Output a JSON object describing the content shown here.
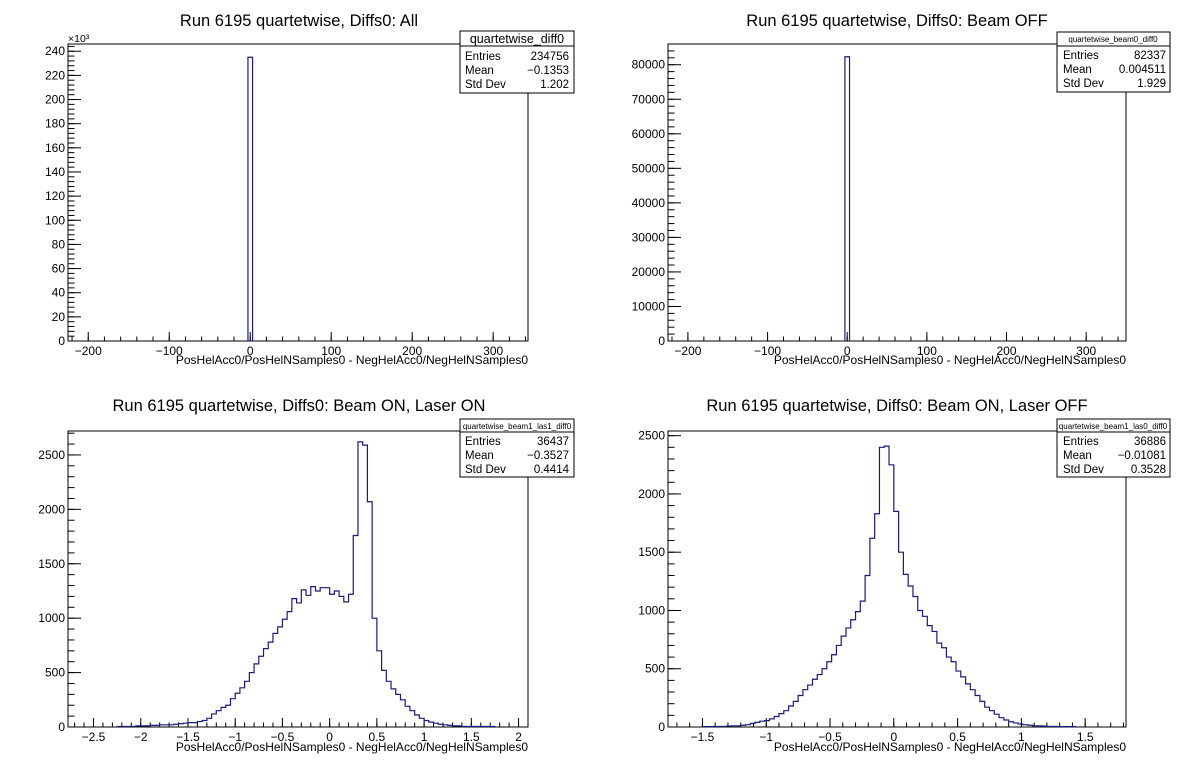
{
  "chart_data": [
    {
      "type": "bar",
      "title": "Run 6195 quartetwise, Diffs0: All",
      "xlabel": "PosHelAcc0/PosHelNSamples0 - NegHelAcc0/NegHelNSamples0",
      "ylabel": "",
      "xlim": [
        -225,
        343
      ],
      "ylim": [
        0,
        246
      ],
      "y_multiplier_label": "×10³",
      "x_ticks": [
        -200,
        -100,
        0,
        100,
        200,
        300
      ],
      "y_ticks": [
        0,
        20,
        40,
        60,
        80,
        100,
        120,
        140,
        160,
        180,
        200,
        220,
        240
      ],
      "grid": false,
      "series": [
        {
          "bin_edges": [
            -2.8,
            2.9
          ],
          "values": [
            235
          ]
        }
      ],
      "stats": {
        "name": "quartetwise_diff0",
        "rows": [
          {
            "label": "Entries",
            "value": "234756"
          },
          {
            "label": "Mean",
            "value": "−0.1353"
          },
          {
            "label": "Std Dev",
            "value": "1.202"
          }
        ]
      }
    },
    {
      "type": "bar",
      "title": "Run 6195 quartetwise, Diffs0: Beam OFF",
      "xlabel": "PosHelAcc0/PosHelNSamples0 - NegHelAcc0/NegHelNSamples0",
      "ylabel": "",
      "xlim": [
        -225,
        350
      ],
      "ylim": [
        0,
        86000
      ],
      "x_ticks": [
        -200,
        -100,
        0,
        100,
        200,
        300
      ],
      "y_ticks": [
        0,
        10000,
        20000,
        30000,
        40000,
        50000,
        60000,
        70000,
        80000
      ],
      "grid": false,
      "series": [
        {
          "bin_edges": [
            -2.9,
            2.9
          ],
          "values": [
            82300
          ]
        }
      ],
      "stats": {
        "name": "quartetwise_beam0_diff0",
        "rows": [
          {
            "label": "Entries",
            "value": "82337"
          },
          {
            "label": "Mean",
            "value": "0.004511"
          },
          {
            "label": "Std Dev",
            "value": "1.929"
          }
        ]
      }
    },
    {
      "type": "bar",
      "title": "Run 6195 quartetwise, Diffs0: Beam ON, Laser ON",
      "xlabel": "PosHelAcc0/PosHelNSamples0 - NegHelAcc0/NegHelNSamples0",
      "ylabel": "",
      "xlim": [
        -2.77,
        2.1
      ],
      "ylim": [
        0,
        2720
      ],
      "x_ticks": [
        -2.5,
        -2,
        -1.5,
        -1,
        -0.5,
        0,
        0.5,
        1,
        1.5,
        2
      ],
      "x_tick_labels": [
        "−2.5",
        "−2",
        "−1.5",
        "−1",
        "−0.5",
        "0",
        "0.5",
        "1",
        "1.5",
        "2"
      ],
      "y_ticks": [
        0,
        500,
        1000,
        1500,
        2000,
        2500
      ],
      "grid": false,
      "series": [
        {
          "bin_start": -2.25,
          "bin_width": 0.05,
          "values": [
            5,
            5,
            5,
            5,
            10,
            10,
            10,
            15,
            15,
            20,
            20,
            20,
            25,
            30,
            35,
            40,
            40,
            50,
            60,
            80,
            120,
            150,
            180,
            200,
            260,
            310,
            360,
            420,
            500,
            580,
            650,
            720,
            780,
            860,
            920,
            990,
            1060,
            1180,
            1140,
            1260,
            1210,
            1290,
            1250,
            1280,
            1280,
            1220,
            1250,
            1200,
            1150,
            1220,
            1760,
            2620,
            2590,
            2070,
            1000,
            700,
            520,
            420,
            350,
            300,
            250,
            190,
            150,
            110,
            80,
            60,
            45,
            35,
            25,
            20,
            15,
            10,
            10,
            5,
            5,
            5,
            5,
            5,
            5,
            5
          ]
        }
      ],
      "stats": {
        "name": "quartetwise_beam1_las1_diff0",
        "rows": [
          {
            "label": "Entries",
            "value": "36437"
          },
          {
            "label": "Mean",
            "value": "−0.3527"
          },
          {
            "label": "Std Dev",
            "value": "0.4414"
          }
        ]
      }
    },
    {
      "type": "bar",
      "title": "Run 6195 quartetwise, Diffs0: Beam ON, Laser OFF",
      "xlabel": "PosHelAcc0/PosHelNSamples0 - NegHelAcc0/NegHelNSamples0",
      "ylabel": "",
      "xlim": [
        -1.77,
        1.82
      ],
      "ylim": [
        0,
        2540
      ],
      "x_ticks": [
        -1.5,
        -1,
        -0.5,
        0,
        0.5,
        1,
        1.5
      ],
      "x_tick_labels": [
        "−1.5",
        "−1",
        "−0.5",
        "0",
        "0.5",
        "1",
        "1.5"
      ],
      "y_ticks": [
        0,
        500,
        1000,
        1500,
        2000,
        2500
      ],
      "grid": false,
      "series": [
        {
          "bin_start": -1.5,
          "bin_width": 0.0375,
          "values": [
            3,
            3,
            5,
            5,
            5,
            8,
            10,
            10,
            15,
            20,
            30,
            40,
            50,
            55,
            70,
            90,
            115,
            140,
            180,
            220,
            270,
            320,
            360,
            410,
            450,
            500,
            560,
            620,
            700,
            780,
            850,
            920,
            990,
            1080,
            1300,
            1620,
            1830,
            2400,
            2410,
            2250,
            1850,
            1500,
            1310,
            1210,
            1120,
            1000,
            950,
            870,
            820,
            720,
            680,
            600,
            560,
            480,
            430,
            370,
            320,
            270,
            220,
            170,
            140,
            110,
            80,
            60,
            45,
            35,
            25,
            20,
            15,
            10,
            10,
            8,
            5,
            5,
            3,
            3,
            3,
            3
          ]
        }
      ],
      "stats": {
        "name": "quartetwise_beam1_las0_diff0",
        "rows": [
          {
            "label": "Entries",
            "value": "36886"
          },
          {
            "label": "Mean",
            "value": "−0.01081"
          },
          {
            "label": "Std Dev",
            "value": "0.3528"
          }
        ]
      }
    }
  ]
}
